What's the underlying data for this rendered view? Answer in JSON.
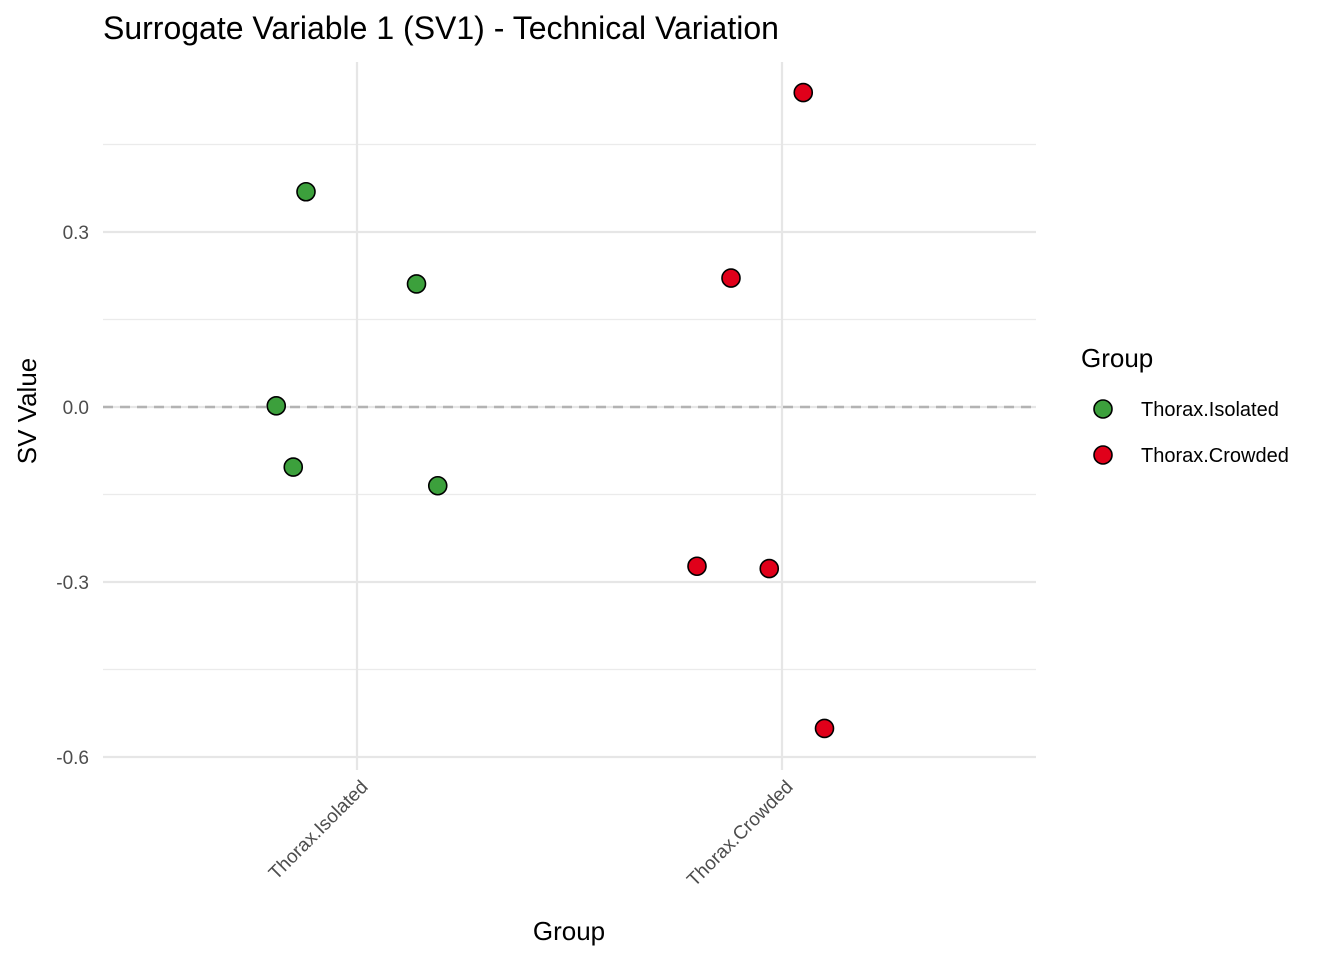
{
  "chart_data": {
    "type": "scatter",
    "title": "Surrogate Variable 1 (SV1) - Technical Variation",
    "xlabel": "Group",
    "ylabel": "SV Value",
    "categories": [
      "Thorax.Isolated",
      "Thorax.Crowded"
    ],
    "y_ticks": [
      0.3,
      0.0,
      -0.3,
      -0.6
    ],
    "y_tick_labels": [
      "0.3",
      "0.0",
      "-0.3",
      "-0.6"
    ],
    "ylim": [
      -0.63,
      0.6
    ],
    "reference_line": {
      "y": 0.0,
      "style": "dashed"
    },
    "grid": true,
    "legend": {
      "title": "Group",
      "position": "right",
      "items": [
        {
          "label": "Thorax.Isolated",
          "color": "#3ca03c"
        },
        {
          "label": "Thorax.Crowded",
          "color": "#e0001a"
        }
      ]
    },
    "series": [
      {
        "name": "Thorax.Isolated",
        "color": "#3ca03c",
        "points": [
          {
            "category": "Thorax.Isolated",
            "jitter": -0.19,
            "y": 0.002
          },
          {
            "category": "Thorax.Isolated",
            "jitter": -0.15,
            "y": -0.103
          },
          {
            "category": "Thorax.Isolated",
            "jitter": -0.12,
            "y": 0.369
          },
          {
            "category": "Thorax.Isolated",
            "jitter": 0.14,
            "y": 0.211
          },
          {
            "category": "Thorax.Isolated",
            "jitter": 0.19,
            "y": -0.135
          }
        ]
      },
      {
        "name": "Thorax.Crowded",
        "color": "#e0001a",
        "points": [
          {
            "category": "Thorax.Crowded",
            "jitter": -0.2,
            "y": -0.273
          },
          {
            "category": "Thorax.Crowded",
            "jitter": -0.12,
            "y": 0.221
          },
          {
            "category": "Thorax.Crowded",
            "jitter": -0.03,
            "y": -0.277
          },
          {
            "category": "Thorax.Crowded",
            "jitter": 0.05,
            "y": 0.539
          },
          {
            "category": "Thorax.Crowded",
            "jitter": 0.1,
            "y": -0.551
          }
        ]
      }
    ]
  }
}
